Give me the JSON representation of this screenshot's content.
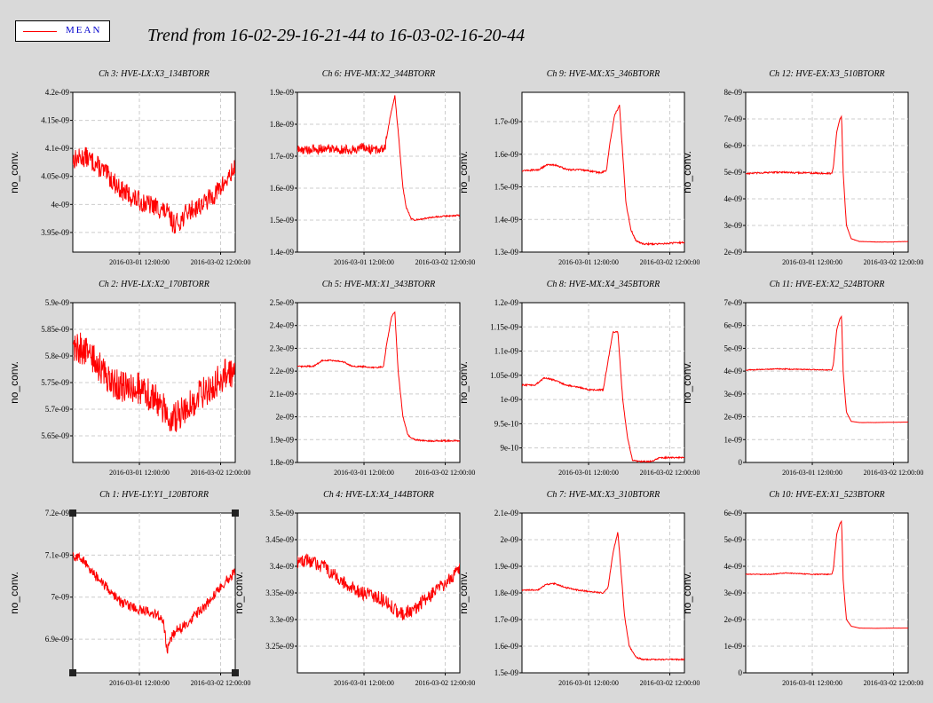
{
  "legend": {
    "label": "MEAN",
    "color": "#ff0000"
  },
  "title": "Trend from 16-02-29-16-21-44 to 16-03-02-16-20-44",
  "colors": {
    "background": "#d9d9d9",
    "plot_bg": "#ffffff",
    "grid": "#cccccc",
    "series": "#ff0000"
  },
  "chart_data": [
    {
      "type": "line",
      "title": "Ch 3: HVE-LX:X3_134BTORR",
      "ylabel": "no_conv.",
      "yticks": [
        "4.2e-09",
        "4.15e-09",
        "4.1e-09",
        "4.05e-09",
        "4e-09",
        "3.95e-09"
      ],
      "ytick_values": [
        4.2e-09,
        4.15e-09,
        4.1e-09,
        4.05e-09,
        4e-09,
        3.95e-09
      ],
      "ylim": [
        3.915e-09,
        4.2e-09
      ],
      "xticks": [
        "2016-03-01 12:00:00",
        "2016-03-02 12:00:00"
      ],
      "xtick_values": [
        0.41,
        0.91
      ],
      "noise": 1.8e-11,
      "series": [
        {
          "x": [
            0,
            0.08,
            0.15,
            0.22,
            0.3,
            0.38,
            0.46,
            0.52,
            0.58,
            0.62,
            0.66,
            0.7,
            0.76,
            0.82,
            0.88,
            0.94,
            1.0
          ],
          "y": [
            4.08e-09,
            4.085e-09,
            4.07e-09,
            4.05e-09,
            4.025e-09,
            4.01e-09,
            4e-09,
            3.995e-09,
            3.985e-09,
            3.965e-09,
            3.97e-09,
            3.985e-09,
            3.995e-09,
            4.005e-09,
            4.02e-09,
            4.04e-09,
            4.065e-09
          ]
        }
      ]
    },
    {
      "type": "line",
      "title": "Ch 6: HVE-MX:X2_344BTORR",
      "ylabel": "",
      "yticks": [
        "1.9e-09",
        "1.8e-09",
        "1.7e-09",
        "1.6e-09",
        "1.5e-09",
        "1.4e-09"
      ],
      "ytick_values": [
        1.9e-09,
        1.8e-09,
        1.7e-09,
        1.6e-09,
        1.5e-09,
        1.4e-09
      ],
      "ylim": [
        1.4e-09,
        1.9e-09
      ],
      "xticks": [
        "2016-03-01 12:00:00",
        "2016-03-02 12:00:00"
      ],
      "xtick_values": [
        0.41,
        0.91
      ],
      "noise": 1.5e-11,
      "noise_until": 0.55,
      "series": [
        {
          "x": [
            0,
            0.1,
            0.2,
            0.3,
            0.4,
            0.5,
            0.54,
            0.57,
            0.6,
            0.62,
            0.65,
            0.67,
            0.7,
            0.72,
            0.78,
            0.85,
            0.92,
            1.0
          ],
          "y": [
            1.72e-09,
            1.72e-09,
            1.725e-09,
            1.72e-09,
            1.725e-09,
            1.72e-09,
            1.73e-09,
            1.82e-09,
            1.89e-09,
            1.78e-09,
            1.6e-09,
            1.54e-09,
            1.505e-09,
            1.5e-09,
            1.505e-09,
            1.51e-09,
            1.513e-09,
            1.515e-09
          ]
        }
      ]
    },
    {
      "type": "line",
      "title": "Ch 9: HVE-MX:X5_346BTORR",
      "ylabel": "no_conv.",
      "yticks": [
        "1.7e-09",
        "1.6e-09",
        "1.5e-09",
        "1.4e-09",
        "1.3e-09"
      ],
      "ytick_values": [
        1.7e-09,
        1.6e-09,
        1.5e-09,
        1.4e-09,
        1.3e-09
      ],
      "ylim": [
        1.3e-09,
        1.79e-09
      ],
      "xticks": [
        "2016-03-01 12:00:00",
        "2016-03-02 12:00:00"
      ],
      "xtick_values": [
        0.41,
        0.91
      ],
      "noise": 2.5e-12,
      "series": [
        {
          "x": [
            0,
            0.1,
            0.15,
            0.2,
            0.28,
            0.34,
            0.4,
            0.48,
            0.52,
            0.54,
            0.57,
            0.6,
            0.62,
            0.64,
            0.67,
            0.7,
            0.75,
            0.82,
            0.9,
            1.0
          ],
          "y": [
            1.55e-09,
            1.552e-09,
            1.567e-09,
            1.568e-09,
            1.553e-09,
            1.553e-09,
            1.55e-09,
            1.543e-09,
            1.55e-09,
            1.63e-09,
            1.72e-09,
            1.75e-09,
            1.6e-09,
            1.45e-09,
            1.37e-09,
            1.335e-09,
            1.325e-09,
            1.325e-09,
            1.327e-09,
            1.33e-09
          ]
        }
      ]
    },
    {
      "type": "line",
      "title": "Ch 12: HVE-EX:X3_510BTORR",
      "ylabel": "no_conv.",
      "yticks": [
        "8e-09",
        "7e-09",
        "6e-09",
        "5e-09",
        "4e-09",
        "3e-09",
        "2e-09"
      ],
      "ytick_values": [
        8e-09,
        7e-09,
        6e-09,
        5e-09,
        4e-09,
        3e-09,
        2e-09
      ],
      "ylim": [
        2e-09,
        8e-09
      ],
      "xticks": [
        "2016-03-01 12:00:00",
        "2016-03-02 12:00:00"
      ],
      "xtick_values": [
        0.41,
        0.91
      ],
      "noise": 3e-11,
      "noise_until": 0.53,
      "series": [
        {
          "x": [
            0,
            0.2,
            0.4,
            0.53,
            0.54,
            0.56,
            0.58,
            0.59,
            0.6,
            0.62,
            0.65,
            0.7,
            0.8,
            0.9,
            1.0
          ],
          "y": [
            4.95e-09,
            5e-09,
            4.97e-09,
            4.95e-09,
            5.2e-09,
            6.5e-09,
            7e-09,
            7.1e-09,
            5e-09,
            3e-09,
            2.5e-09,
            2.4e-09,
            2.38e-09,
            2.38e-09,
            2.4e-09
          ]
        }
      ]
    },
    {
      "type": "line",
      "title": "Ch 2: HVE-LX:X2_170BTORR",
      "ylabel": "no_conv.",
      "yticks": [
        "5.9e-09",
        "5.85e-09",
        "5.8e-09",
        "5.75e-09",
        "5.7e-09",
        "5.65e-09"
      ],
      "ytick_values": [
        5.9e-09,
        5.85e-09,
        5.8e-09,
        5.75e-09,
        5.7e-09,
        5.65e-09
      ],
      "ylim": [
        5.6e-09,
        5.9e-09
      ],
      "xticks": [
        "2016-03-01 12:00:00",
        "2016-03-02 12:00:00"
      ],
      "xtick_values": [
        0.41,
        0.91
      ],
      "noise": 3e-11,
      "series": [
        {
          "x": [
            0,
            0.08,
            0.16,
            0.24,
            0.32,
            0.4,
            0.48,
            0.54,
            0.58,
            0.62,
            0.66,
            0.72,
            0.8,
            0.88,
            0.95,
            1.0
          ],
          "y": [
            5.82e-09,
            5.81e-09,
            5.78e-09,
            5.75e-09,
            5.74e-09,
            5.74e-09,
            5.725e-09,
            5.71e-09,
            5.69e-09,
            5.68e-09,
            5.69e-09,
            5.71e-09,
            5.73e-09,
            5.75e-09,
            5.77e-09,
            5.77e-09
          ]
        }
      ]
    },
    {
      "type": "line",
      "title": "Ch 5: HVE-MX:X1_343BTORR",
      "ylabel": "",
      "yticks": [
        "2.5e-09",
        "2.4e-09",
        "2.3e-09",
        "2.2e-09",
        "2.1e-09",
        "2e-09",
        "1.9e-09",
        "1.8e-09"
      ],
      "ytick_values": [
        2.5e-09,
        2.4e-09,
        2.3e-09,
        2.2e-09,
        2.1e-09,
        2e-09,
        1.9e-09,
        1.8e-09
      ],
      "ylim": [
        1.8e-09,
        2.5e-09
      ],
      "xticks": [
        "2016-03-01 12:00:00",
        "2016-03-02 12:00:00"
      ],
      "xtick_values": [
        0.41,
        0.91
      ],
      "noise": 3e-12,
      "series": [
        {
          "x": [
            0,
            0.1,
            0.15,
            0.2,
            0.28,
            0.34,
            0.4,
            0.48,
            0.53,
            0.55,
            0.58,
            0.6,
            0.62,
            0.65,
            0.68,
            0.72,
            0.8,
            0.9,
            1.0
          ],
          "y": [
            2.22e-09,
            2.222e-09,
            2.245e-09,
            2.248e-09,
            2.242e-09,
            2.22e-09,
            2.22e-09,
            2.215e-09,
            2.22e-09,
            2.32e-09,
            2.44e-09,
            2.46e-09,
            2.2e-09,
            2e-09,
            1.92e-09,
            1.9e-09,
            1.893e-09,
            1.895e-09,
            1.895e-09
          ]
        }
      ]
    },
    {
      "type": "line",
      "title": "Ch 8: HVE-MX:X4_345BTORR",
      "ylabel": "no_conv.",
      "yticks": [
        "1.2e-09",
        "1.15e-09",
        "1.1e-09",
        "1.05e-09",
        "1e-09",
        "9.5e-10",
        "9e-10"
      ],
      "ytick_values": [
        1.2e-09,
        1.15e-09,
        1.1e-09,
        1.05e-09,
        1e-09,
        9.5e-10,
        9e-10
      ],
      "ylim": [
        8.7e-10,
        1.2e-09
      ],
      "xticks": [
        "2016-03-01 12:00:00",
        "2016-03-02 12:00:00"
      ],
      "xtick_values": [
        0.41,
        0.91
      ],
      "noise": 1.5e-12,
      "series": [
        {
          "x": [
            0,
            0.08,
            0.14,
            0.2,
            0.27,
            0.35,
            0.42,
            0.5,
            0.53,
            0.56,
            0.59,
            0.62,
            0.65,
            0.68,
            0.72,
            0.8,
            0.85,
            0.88,
            1.0
          ],
          "y": [
            1.03e-09,
            1.03e-09,
            1.045e-09,
            1.04e-09,
            1.03e-09,
            1.025e-09,
            1.02e-09,
            1.02e-09,
            1.08e-09,
            1.14e-09,
            1.14e-09,
            1e-09,
            9.2e-10,
            8.75e-10,
            8.72e-10,
            8.72e-10,
            8.8e-10,
            8.8e-10,
            8.8e-10
          ]
        }
      ]
    },
    {
      "type": "line",
      "title": "Ch 11: HVE-EX:X2_524BTORR",
      "ylabel": "no_conv.",
      "yticks": [
        "7e-09",
        "6e-09",
        "5e-09",
        "4e-09",
        "3e-09",
        "2e-09",
        "1e-09",
        "0"
      ],
      "ytick_values": [
        7e-09,
        6e-09,
        5e-09,
        4e-09,
        3e-09,
        2e-09,
        1e-09,
        0
      ],
      "ylim": [
        0,
        7e-09
      ],
      "xticks": [
        "2016-03-01 12:00:00",
        "2016-03-02 12:00:00"
      ],
      "xtick_values": [
        0.41,
        0.91
      ],
      "noise": 2e-11,
      "noise_until": 0.53,
      "series": [
        {
          "x": [
            0,
            0.2,
            0.4,
            0.53,
            0.54,
            0.56,
            0.58,
            0.59,
            0.6,
            0.62,
            0.65,
            0.7,
            0.8,
            0.9,
            1.0
          ],
          "y": [
            4.05e-09,
            4.1e-09,
            4.07e-09,
            4.05e-09,
            4.3e-09,
            5.8e-09,
            6.3e-09,
            6.4e-09,
            4e-09,
            2.2e-09,
            1.8e-09,
            1.75e-09,
            1.75e-09,
            1.76e-09,
            1.77e-09
          ]
        }
      ]
    },
    {
      "type": "line",
      "title": "Ch 1: HVE-LY:Y1_120BTORR",
      "ylabel": "no_conv.",
      "yticks": [
        "7.2e-09",
        "7.1e-09",
        "7e-09",
        "6.9e-09"
      ],
      "ytick_values": [
        7.2e-09,
        7.1e-09,
        7e-09,
        6.9e-09
      ],
      "ylim": [
        6.82e-09,
        7.2e-09
      ],
      "xticks": [
        "2016-03-01 12:00:00",
        "2016-03-02 12:00:00"
      ],
      "xtick_values": [
        0.41,
        0.91
      ],
      "noise": 1.2e-11,
      "series": [
        {
          "x": [
            0,
            0.06,
            0.14,
            0.22,
            0.3,
            0.38,
            0.46,
            0.52,
            0.56,
            0.58,
            0.6,
            0.63,
            0.68,
            0.76,
            0.84,
            0.92,
            1.0
          ],
          "y": [
            7.1e-09,
            7.09e-09,
            7.05e-09,
            7.02e-09,
            6.985e-09,
            6.975e-09,
            6.965e-09,
            6.96e-09,
            6.94e-09,
            6.87e-09,
            6.9e-09,
            6.92e-09,
            6.93e-09,
            6.96e-09,
            6.99e-09,
            7.03e-09,
            7.06e-09
          ]
        }
      ]
    },
    {
      "type": "line",
      "title": "Ch 4: HVE-LX:X4_144BTORR",
      "ylabel": "no_conv.",
      "yticks": [
        "3.5e-09",
        "3.45e-09",
        "3.4e-09",
        "3.35e-09",
        "3.3e-09",
        "3.25e-09"
      ],
      "ytick_values": [
        3.5e-09,
        3.45e-09,
        3.4e-09,
        3.35e-09,
        3.3e-09,
        3.25e-09
      ],
      "ylim": [
        3.2e-09,
        3.5e-09
      ],
      "xticks": [
        "2016-03-01 12:00:00",
        "2016-03-02 12:00:00"
      ],
      "xtick_values": [
        0.41,
        0.91
      ],
      "noise": 1.3e-11,
      "series": [
        {
          "x": [
            0,
            0.08,
            0.16,
            0.24,
            0.32,
            0.4,
            0.48,
            0.54,
            0.6,
            0.64,
            0.68,
            0.74,
            0.8,
            0.88,
            0.95,
            1.0
          ],
          "y": [
            3.41e-09,
            3.41e-09,
            3.4e-09,
            3.38e-09,
            3.36e-09,
            3.35e-09,
            3.345e-09,
            3.335e-09,
            3.32e-09,
            3.31e-09,
            3.315e-09,
            3.325e-09,
            3.34e-09,
            3.36e-09,
            3.38e-09,
            3.4e-09
          ]
        }
      ]
    },
    {
      "type": "line",
      "title": "Ch 7: HVE-MX:X3_310BTORR",
      "ylabel": "no_conv.",
      "yticks": [
        "2.1e-09",
        "2e-09",
        "1.9e-09",
        "1.8e-09",
        "1.7e-09",
        "1.6e-09",
        "1.5e-09"
      ],
      "ytick_values": [
        2.1e-09,
        2e-09,
        1.9e-09,
        1.8e-09,
        1.7e-09,
        1.6e-09,
        1.5e-09
      ],
      "ylim": [
        1.5e-09,
        2.1e-09
      ],
      "xticks": [
        "2016-03-01 12:00:00",
        "2016-03-02 12:00:00"
      ],
      "xtick_values": [
        0.41,
        0.91
      ],
      "noise": 2.5e-12,
      "series": [
        {
          "x": [
            0,
            0.1,
            0.15,
            0.2,
            0.27,
            0.35,
            0.42,
            0.5,
            0.53,
            0.56,
            0.59,
            0.61,
            0.63,
            0.66,
            0.7,
            0.74,
            0.8,
            0.9,
            1.0
          ],
          "y": [
            1.81e-09,
            1.812e-09,
            1.832e-09,
            1.835e-09,
            1.82e-09,
            1.81e-09,
            1.805e-09,
            1.8e-09,
            1.82e-09,
            1.95e-09,
            2.03e-09,
            1.88e-09,
            1.72e-09,
            1.6e-09,
            1.56e-09,
            1.55e-09,
            1.55e-09,
            1.55e-09,
            1.55e-09
          ]
        }
      ]
    },
    {
      "type": "line",
      "title": "Ch 10: HVE-EX:X1_523BTORR",
      "ylabel": "no_conv.",
      "yticks": [
        "6e-09",
        "5e-09",
        "4e-09",
        "3e-09",
        "2e-09",
        "1e-09",
        "0"
      ],
      "ytick_values": [
        6e-09,
        5e-09,
        4e-09,
        3e-09,
        2e-09,
        1e-09,
        0
      ],
      "ylim": [
        0,
        6e-09
      ],
      "xticks": [
        "2016-03-01 12:00:00",
        "2016-03-02 12:00:00"
      ],
      "xtick_values": [
        0.41,
        0.91
      ],
      "noise": 1.5e-11,
      "noise_until": 0.53,
      "series": [
        {
          "x": [
            0,
            0.15,
            0.25,
            0.4,
            0.53,
            0.54,
            0.56,
            0.58,
            0.59,
            0.6,
            0.62,
            0.65,
            0.7,
            0.8,
            0.9,
            1.0
          ],
          "y": [
            3.7e-09,
            3.7e-09,
            3.75e-09,
            3.7e-09,
            3.7e-09,
            3.9e-09,
            5.2e-09,
            5.6e-09,
            5.7e-09,
            3.5e-09,
            2e-09,
            1.75e-09,
            1.68e-09,
            1.67e-09,
            1.68e-09,
            1.68e-09
          ]
        }
      ]
    }
  ]
}
